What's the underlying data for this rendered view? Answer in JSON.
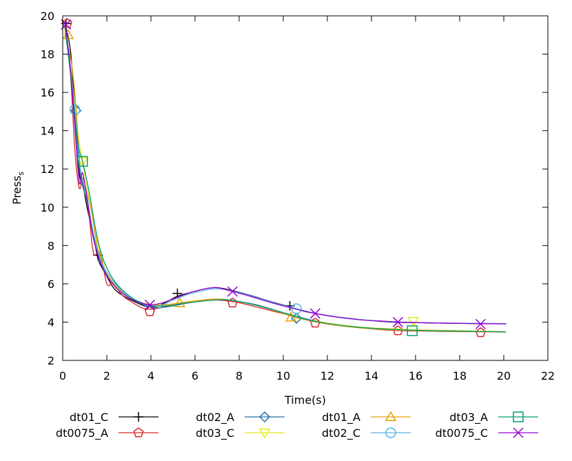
{
  "chart_data": {
    "type": "line",
    "xlabel": "Time(s)",
    "ylabel_main": "Press",
    "ylabel_sub": "s",
    "xlim": [
      0,
      22
    ],
    "ylim": [
      2,
      20
    ],
    "x_ticks": [
      "0",
      "2",
      "4",
      "6",
      "8",
      "10",
      "12",
      "14",
      "16",
      "18",
      "20",
      "22"
    ],
    "y_ticks": [
      "2",
      "4",
      "6",
      "8",
      "10",
      "12",
      "14",
      "16",
      "18",
      "20"
    ],
    "grid": false,
    "legend_position": "bottom",
    "series": [
      {
        "name": "dt01_C",
        "color": "#000000",
        "marker": "plus",
        "points": [
          [
            0.1,
            19.6
          ],
          [
            0.35,
            18.2
          ],
          [
            0.55,
            15.2
          ],
          [
            0.75,
            11.8
          ],
          [
            0.9,
            11.3
          ],
          [
            1.1,
            10.0
          ],
          [
            1.4,
            8.5
          ],
          [
            1.6,
            7.3
          ],
          [
            1.9,
            6.6
          ],
          [
            2.3,
            5.8
          ],
          [
            2.7,
            5.4
          ],
          [
            3.2,
            5.1
          ],
          [
            3.7,
            4.85
          ],
          [
            4.2,
            4.8
          ],
          [
            4.7,
            5.05
          ],
          [
            5.2,
            5.35
          ],
          [
            5.8,
            5.55
          ],
          [
            6.5,
            5.75
          ],
          [
            7.0,
            5.8
          ],
          [
            7.7,
            5.65
          ],
          [
            8.5,
            5.4
          ],
          [
            9.5,
            5.05
          ],
          [
            10.3,
            4.8
          ],
          [
            11.0,
            4.55
          ],
          [
            12.0,
            4.35
          ],
          [
            13.0,
            4.2
          ],
          [
            14.0,
            4.08
          ],
          [
            15.0,
            4.0
          ],
          [
            16.0,
            3.97
          ],
          [
            17.0,
            3.95
          ],
          [
            18.0,
            3.93
          ],
          [
            19.0,
            3.92
          ],
          [
            20.1,
            3.91
          ]
        ],
        "markers": [
          [
            0.15,
            19.6
          ],
          [
            1.6,
            7.5
          ],
          [
            5.2,
            5.5
          ],
          [
            10.3,
            4.85
          ]
        ]
      },
      {
        "name": "dt0075_A",
        "color": "#d62728",
        "marker": "pentagon",
        "points": [
          [
            0.1,
            19.7
          ],
          [
            0.35,
            17.0
          ],
          [
            0.55,
            13.0
          ],
          [
            0.75,
            11.0
          ],
          [
            0.95,
            11.5
          ],
          [
            1.2,
            9.5
          ],
          [
            1.4,
            7.6
          ],
          [
            1.7,
            7.6
          ],
          [
            2.0,
            6.0
          ],
          [
            2.3,
            6.0
          ],
          [
            2.7,
            5.4
          ],
          [
            3.2,
            5.0
          ],
          [
            3.7,
            4.7
          ],
          [
            4.2,
            4.7
          ],
          [
            4.8,
            4.85
          ],
          [
            5.5,
            5.0
          ],
          [
            6.2,
            5.1
          ],
          [
            7.0,
            5.15
          ],
          [
            7.8,
            5.05
          ],
          [
            8.6,
            4.85
          ],
          [
            9.6,
            4.55
          ],
          [
            10.5,
            4.3
          ],
          [
            11.3,
            4.05
          ],
          [
            12.3,
            3.85
          ],
          [
            13.5,
            3.7
          ],
          [
            14.5,
            3.6
          ],
          [
            15.5,
            3.55
          ],
          [
            16.5,
            3.53
          ],
          [
            17.5,
            3.51
          ],
          [
            18.5,
            3.5
          ],
          [
            19.5,
            3.49
          ],
          [
            20.1,
            3.48
          ]
        ],
        "markers": [
          [
            0.2,
            19.6
          ],
          [
            3.95,
            4.55
          ],
          [
            7.7,
            5.0
          ],
          [
            11.45,
            3.95
          ],
          [
            15.2,
            3.55
          ],
          [
            18.95,
            3.45
          ]
        ]
      },
      {
        "name": "dt02_A",
        "color": "#1f6fa8",
        "marker": "diamond",
        "points": [
          [
            0.1,
            19.6
          ],
          [
            0.35,
            17.0
          ],
          [
            0.55,
            14.5
          ],
          [
            0.8,
            11.7
          ],
          [
            1.1,
            10.3
          ],
          [
            1.4,
            8.6
          ],
          [
            1.7,
            7.2
          ],
          [
            2.0,
            6.5
          ],
          [
            2.4,
            5.9
          ],
          [
            2.9,
            5.4
          ],
          [
            3.4,
            5.05
          ],
          [
            3.9,
            4.8
          ],
          [
            4.4,
            4.75
          ],
          [
            5.0,
            4.85
          ],
          [
            5.7,
            5.0
          ],
          [
            6.5,
            5.15
          ],
          [
            7.2,
            5.2
          ],
          [
            7.9,
            5.1
          ],
          [
            8.8,
            4.9
          ],
          [
            9.7,
            4.6
          ],
          [
            10.6,
            4.3
          ],
          [
            11.5,
            4.05
          ],
          [
            12.5,
            3.85
          ],
          [
            13.5,
            3.72
          ],
          [
            14.5,
            3.62
          ],
          [
            15.5,
            3.57
          ],
          [
            16.5,
            3.54
          ],
          [
            17.5,
            3.52
          ],
          [
            18.5,
            3.51
          ],
          [
            19.5,
            3.5
          ],
          [
            20.1,
            3.49
          ]
        ],
        "markers": [
          [
            0.6,
            15.05
          ],
          [
            10.6,
            4.2
          ]
        ]
      },
      {
        "name": "dt03_C",
        "color": "#e8e81a",
        "marker": "triangle-down",
        "points": [
          [
            0.1,
            19.3
          ],
          [
            0.4,
            16.8
          ],
          [
            0.7,
            13.8
          ],
          [
            0.9,
            12.3
          ],
          [
            1.2,
            10.5
          ],
          [
            1.5,
            8.6
          ],
          [
            1.8,
            7.3
          ],
          [
            2.2,
            6.4
          ],
          [
            2.6,
            5.8
          ],
          [
            3.1,
            5.3
          ],
          [
            3.6,
            5.0
          ],
          [
            4.1,
            4.9
          ],
          [
            4.7,
            4.9
          ],
          [
            5.3,
            5.0
          ],
          [
            6.0,
            5.1
          ],
          [
            6.8,
            5.2
          ],
          [
            7.5,
            5.15
          ],
          [
            8.3,
            5.0
          ],
          [
            9.2,
            4.75
          ],
          [
            10.1,
            4.45
          ],
          [
            11.0,
            4.15
          ],
          [
            12.0,
            3.95
          ],
          [
            13.0,
            3.8
          ],
          [
            14.0,
            3.7
          ],
          [
            15.0,
            3.65
          ],
          [
            16.0,
            3.6
          ],
          [
            17.0,
            3.58
          ],
          [
            18.0,
            3.55
          ],
          [
            19.0,
            3.53
          ],
          [
            20.1,
            3.5
          ]
        ],
        "markers": [
          [
            0.9,
            12.4
          ],
          [
            15.9,
            4.05
          ]
        ]
      },
      {
        "name": "dt01_A",
        "color": "#e69f00",
        "marker": "triangle-up",
        "points": [
          [
            0.1,
            19.1
          ],
          [
            0.4,
            17.5
          ],
          [
            0.6,
            15.3
          ],
          [
            0.8,
            12.0
          ],
          [
            1.0,
            11.2
          ],
          [
            1.3,
            9.8
          ],
          [
            1.6,
            7.8
          ],
          [
            1.9,
            6.8
          ],
          [
            2.3,
            6.0
          ],
          [
            2.8,
            5.5
          ],
          [
            3.3,
            5.15
          ],
          [
            3.8,
            4.95
          ],
          [
            4.4,
            4.9
          ],
          [
            5.0,
            4.95
          ],
          [
            5.6,
            5.05
          ],
          [
            6.3,
            5.15
          ],
          [
            7.0,
            5.2
          ],
          [
            7.8,
            5.1
          ],
          [
            8.7,
            4.9
          ],
          [
            9.6,
            4.6
          ],
          [
            10.4,
            4.3
          ],
          [
            11.3,
            4.05
          ],
          [
            12.3,
            3.85
          ],
          [
            13.3,
            3.72
          ],
          [
            14.3,
            3.63
          ],
          [
            15.3,
            3.58
          ],
          [
            16.3,
            3.55
          ],
          [
            17.3,
            3.53
          ],
          [
            18.3,
            3.51
          ],
          [
            19.3,
            3.5
          ],
          [
            20.1,
            3.49
          ]
        ],
        "markers": [
          [
            0.25,
            19.0
          ],
          [
            5.3,
            5.0
          ],
          [
            10.35,
            4.25
          ]
        ]
      },
      {
        "name": "dt02_C",
        "color": "#56b4e9",
        "marker": "circle",
        "points": [
          [
            0.1,
            19.5
          ],
          [
            0.35,
            17.2
          ],
          [
            0.55,
            15.1
          ],
          [
            0.8,
            12.0
          ],
          [
            1.1,
            10.5
          ],
          [
            1.4,
            8.6
          ],
          [
            1.7,
            7.3
          ],
          [
            2.0,
            6.6
          ],
          [
            2.4,
            6.0
          ],
          [
            2.9,
            5.4
          ],
          [
            3.4,
            5.1
          ],
          [
            3.9,
            4.85
          ],
          [
            4.4,
            4.85
          ],
          [
            5.0,
            5.15
          ],
          [
            5.7,
            5.45
          ],
          [
            6.4,
            5.65
          ],
          [
            7.0,
            5.75
          ],
          [
            7.8,
            5.6
          ],
          [
            8.6,
            5.35
          ],
          [
            9.6,
            5.0
          ],
          [
            10.6,
            4.7
          ],
          [
            11.5,
            4.45
          ],
          [
            12.5,
            4.27
          ],
          [
            13.5,
            4.13
          ],
          [
            14.5,
            4.05
          ],
          [
            15.5,
            4.0
          ],
          [
            16.5,
            3.97
          ],
          [
            17.5,
            3.95
          ],
          [
            18.5,
            3.94
          ],
          [
            19.5,
            3.93
          ],
          [
            20.1,
            3.92
          ]
        ],
        "markers": [
          [
            0.55,
            15.1
          ],
          [
            10.6,
            4.7
          ]
        ]
      },
      {
        "name": "dt03_A",
        "color": "#009e73",
        "marker": "square",
        "points": [
          [
            0.1,
            19.4
          ],
          [
            0.4,
            16.5
          ],
          [
            0.7,
            13.3
          ],
          [
            0.9,
            12.4
          ],
          [
            1.2,
            10.8
          ],
          [
            1.5,
            8.8
          ],
          [
            1.8,
            7.4
          ],
          [
            2.2,
            6.4
          ],
          [
            2.6,
            5.8
          ],
          [
            3.1,
            5.3
          ],
          [
            3.6,
            5.0
          ],
          [
            4.1,
            4.85
          ],
          [
            4.7,
            4.85
          ],
          [
            5.3,
            4.95
          ],
          [
            6.0,
            5.05
          ],
          [
            6.8,
            5.15
          ],
          [
            7.5,
            5.15
          ],
          [
            8.3,
            5.0
          ],
          [
            9.2,
            4.75
          ],
          [
            10.1,
            4.45
          ],
          [
            11.0,
            4.15
          ],
          [
            12.0,
            3.93
          ],
          [
            13.0,
            3.78
          ],
          [
            14.0,
            3.68
          ],
          [
            15.0,
            3.62
          ],
          [
            15.9,
            3.58
          ],
          [
            17.0,
            3.55
          ],
          [
            18.0,
            3.53
          ],
          [
            19.0,
            3.51
          ],
          [
            20.1,
            3.49
          ]
        ],
        "markers": [
          [
            0.9,
            12.4
          ],
          [
            15.85,
            3.55
          ]
        ]
      },
      {
        "name": "dt0075_C",
        "color": "#9400d3",
        "marker": "cross",
        "points": [
          [
            0.1,
            19.7
          ],
          [
            0.35,
            17.3
          ],
          [
            0.55,
            14.2
          ],
          [
            0.75,
            11.3
          ],
          [
            0.9,
            11.8
          ],
          [
            1.1,
            10.5
          ],
          [
            1.35,
            8.6
          ],
          [
            1.6,
            7.5
          ],
          [
            1.9,
            6.6
          ],
          [
            2.2,
            6.1
          ],
          [
            2.5,
            5.7
          ],
          [
            2.9,
            5.35
          ],
          [
            3.4,
            5.05
          ],
          [
            3.95,
            4.9
          ],
          [
            4.5,
            5.0
          ],
          [
            5.1,
            5.25
          ],
          [
            5.8,
            5.55
          ],
          [
            6.5,
            5.75
          ],
          [
            7.0,
            5.8
          ],
          [
            7.7,
            5.6
          ],
          [
            8.5,
            5.35
          ],
          [
            9.5,
            5.0
          ],
          [
            10.5,
            4.7
          ],
          [
            11.45,
            4.45
          ],
          [
            12.5,
            4.25
          ],
          [
            13.5,
            4.12
          ],
          [
            14.5,
            4.05
          ],
          [
            15.2,
            4.0
          ],
          [
            16.2,
            3.97
          ],
          [
            17.2,
            3.95
          ],
          [
            18.2,
            3.93
          ],
          [
            18.95,
            3.92
          ],
          [
            20.1,
            3.91
          ]
        ],
        "markers": [
          [
            0.15,
            19.55
          ],
          [
            3.95,
            4.9
          ],
          [
            7.7,
            5.6
          ],
          [
            11.45,
            4.45
          ],
          [
            15.2,
            4.0
          ],
          [
            18.95,
            3.9
          ]
        ]
      }
    ]
  }
}
